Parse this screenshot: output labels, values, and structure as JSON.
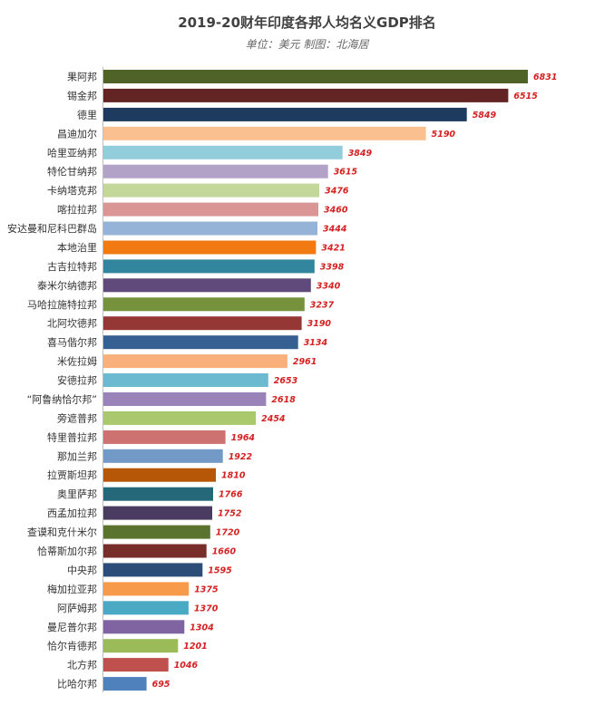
{
  "chart_data": {
    "type": "bar",
    "orientation": "horizontal",
    "title": "2019-20财年印度各邦人均名义GDP排名",
    "subtitle": "单位：美元  制图：北海居",
    "xlabel": "",
    "ylabel": "",
    "xlim": [
      0,
      6831
    ],
    "grid": false,
    "legend": "none",
    "categories": [
      "果阿邦",
      "锡金邦",
      "德里",
      "昌迪加尔",
      "哈里亚纳邦",
      "特伦甘纳邦",
      "卡纳塔克邦",
      "喀拉拉邦",
      "安达曼和尼科巴群岛",
      "本地治里",
      "古吉拉特邦",
      "泰米尔纳德邦",
      "马哈拉施特拉邦",
      "北阿坎德邦",
      "喜马偕尔邦",
      "米佐拉姆",
      "安德拉邦",
      "“阿鲁纳恰尔邦”",
      "旁遮普邦",
      "特里普拉邦",
      "那加兰邦",
      "拉贾斯坦邦",
      "奥里萨邦",
      "西孟加拉邦",
      "查谟和克什米尔",
      "恰蒂斯加尔邦",
      "中央邦",
      "梅加拉亚邦",
      "阿萨姆邦",
      "曼尼普尔邦",
      "恰尔肯德邦",
      "北方邦",
      "比哈尔邦"
    ],
    "values": [
      6831,
      6515,
      5849,
      5190,
      3849,
      3615,
      3476,
      3460,
      3444,
      3421,
      3398,
      3340,
      3237,
      3190,
      3134,
      2961,
      2653,
      2618,
      2454,
      1964,
      1922,
      1810,
      1766,
      1752,
      1720,
      1660,
      1595,
      1375,
      1370,
      1304,
      1201,
      1046,
      695
    ],
    "value_labels": [
      "6831",
      "6515",
      "5849",
      "5190",
      "3849",
      "3615",
      "3476",
      "3460",
      "3444",
      "3421",
      "3398",
      "3340",
      "3237",
      "3190",
      "3134",
      "2961",
      "2653",
      "2618",
      "2454",
      "1964",
      "1922",
      "1810",
      "1766",
      "1752",
      "1720",
      "1660",
      "1595",
      "1375",
      "1370",
      "1304",
      "1201",
      "1046",
      "695"
    ],
    "colors": [
      "#4f6228",
      "#632523",
      "#1f3a5f",
      "#fac090",
      "#92cddc",
      "#b3a2c7",
      "#c4d79b",
      "#d99694",
      "#95b3d7",
      "#f27a13",
      "#31859c",
      "#604a7b",
      "#76923c",
      "#953735",
      "#376092",
      "#fab07a",
      "#6cbad0",
      "#9983b8",
      "#aac86e",
      "#cd7271",
      "#7399c6",
      "#b65708",
      "#24687a",
      "#4a3b60",
      "#5a7430",
      "#782d2a",
      "#2b4d78",
      "#f79a4a",
      "#4aaac4",
      "#8064a2",
      "#9bbb59",
      "#c0504d",
      "#4f81bd"
    ]
  }
}
